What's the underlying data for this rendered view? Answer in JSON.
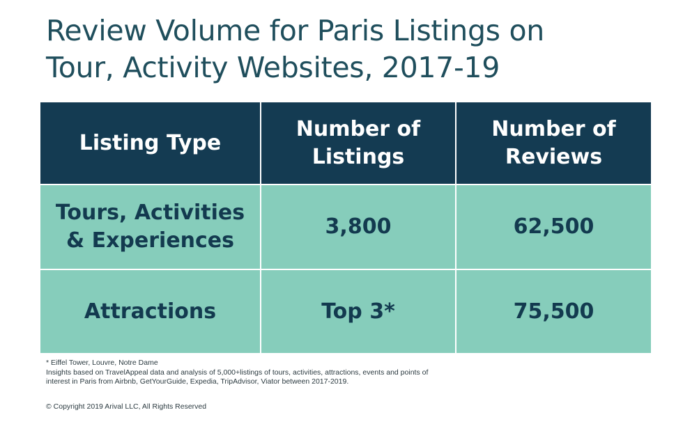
{
  "chart_data": {
    "type": "table",
    "title_lines": [
      "Review Volume for Paris Listings on",
      "Tour, Activity Websites, 2017-19"
    ],
    "columns": [
      [
        "Listing Type"
      ],
      [
        "Number of",
        "Listings"
      ],
      [
        "Number of",
        "Reviews"
      ]
    ],
    "rows": [
      {
        "listing_type": [
          "Tours, Activities",
          "& Experiences"
        ],
        "listings": "3,800",
        "reviews": "62,500"
      },
      {
        "listing_type": [
          "Attractions"
        ],
        "listings": "Top 3*",
        "reviews": "75,500"
      }
    ]
  },
  "footnotes": [
    "* Eiffel Tower, Louvre, Notre Dame",
    "Insights based on TravelAppeal data and analysis of 5,000+listings of tours, activities, attractions, events and points of",
    "interest in Paris from Airbnb, GetYourGuide, Expedia, TripAdvisor, Viator between 2017-2019."
  ],
  "copyright": "© Copyright 2019 Arival LLC, All Rights Reserved",
  "colors": {
    "title": "#1f4e5c",
    "header_bg": "#143b52",
    "row_bg": "#86cdbb",
    "row_text": "#133a4f"
  }
}
